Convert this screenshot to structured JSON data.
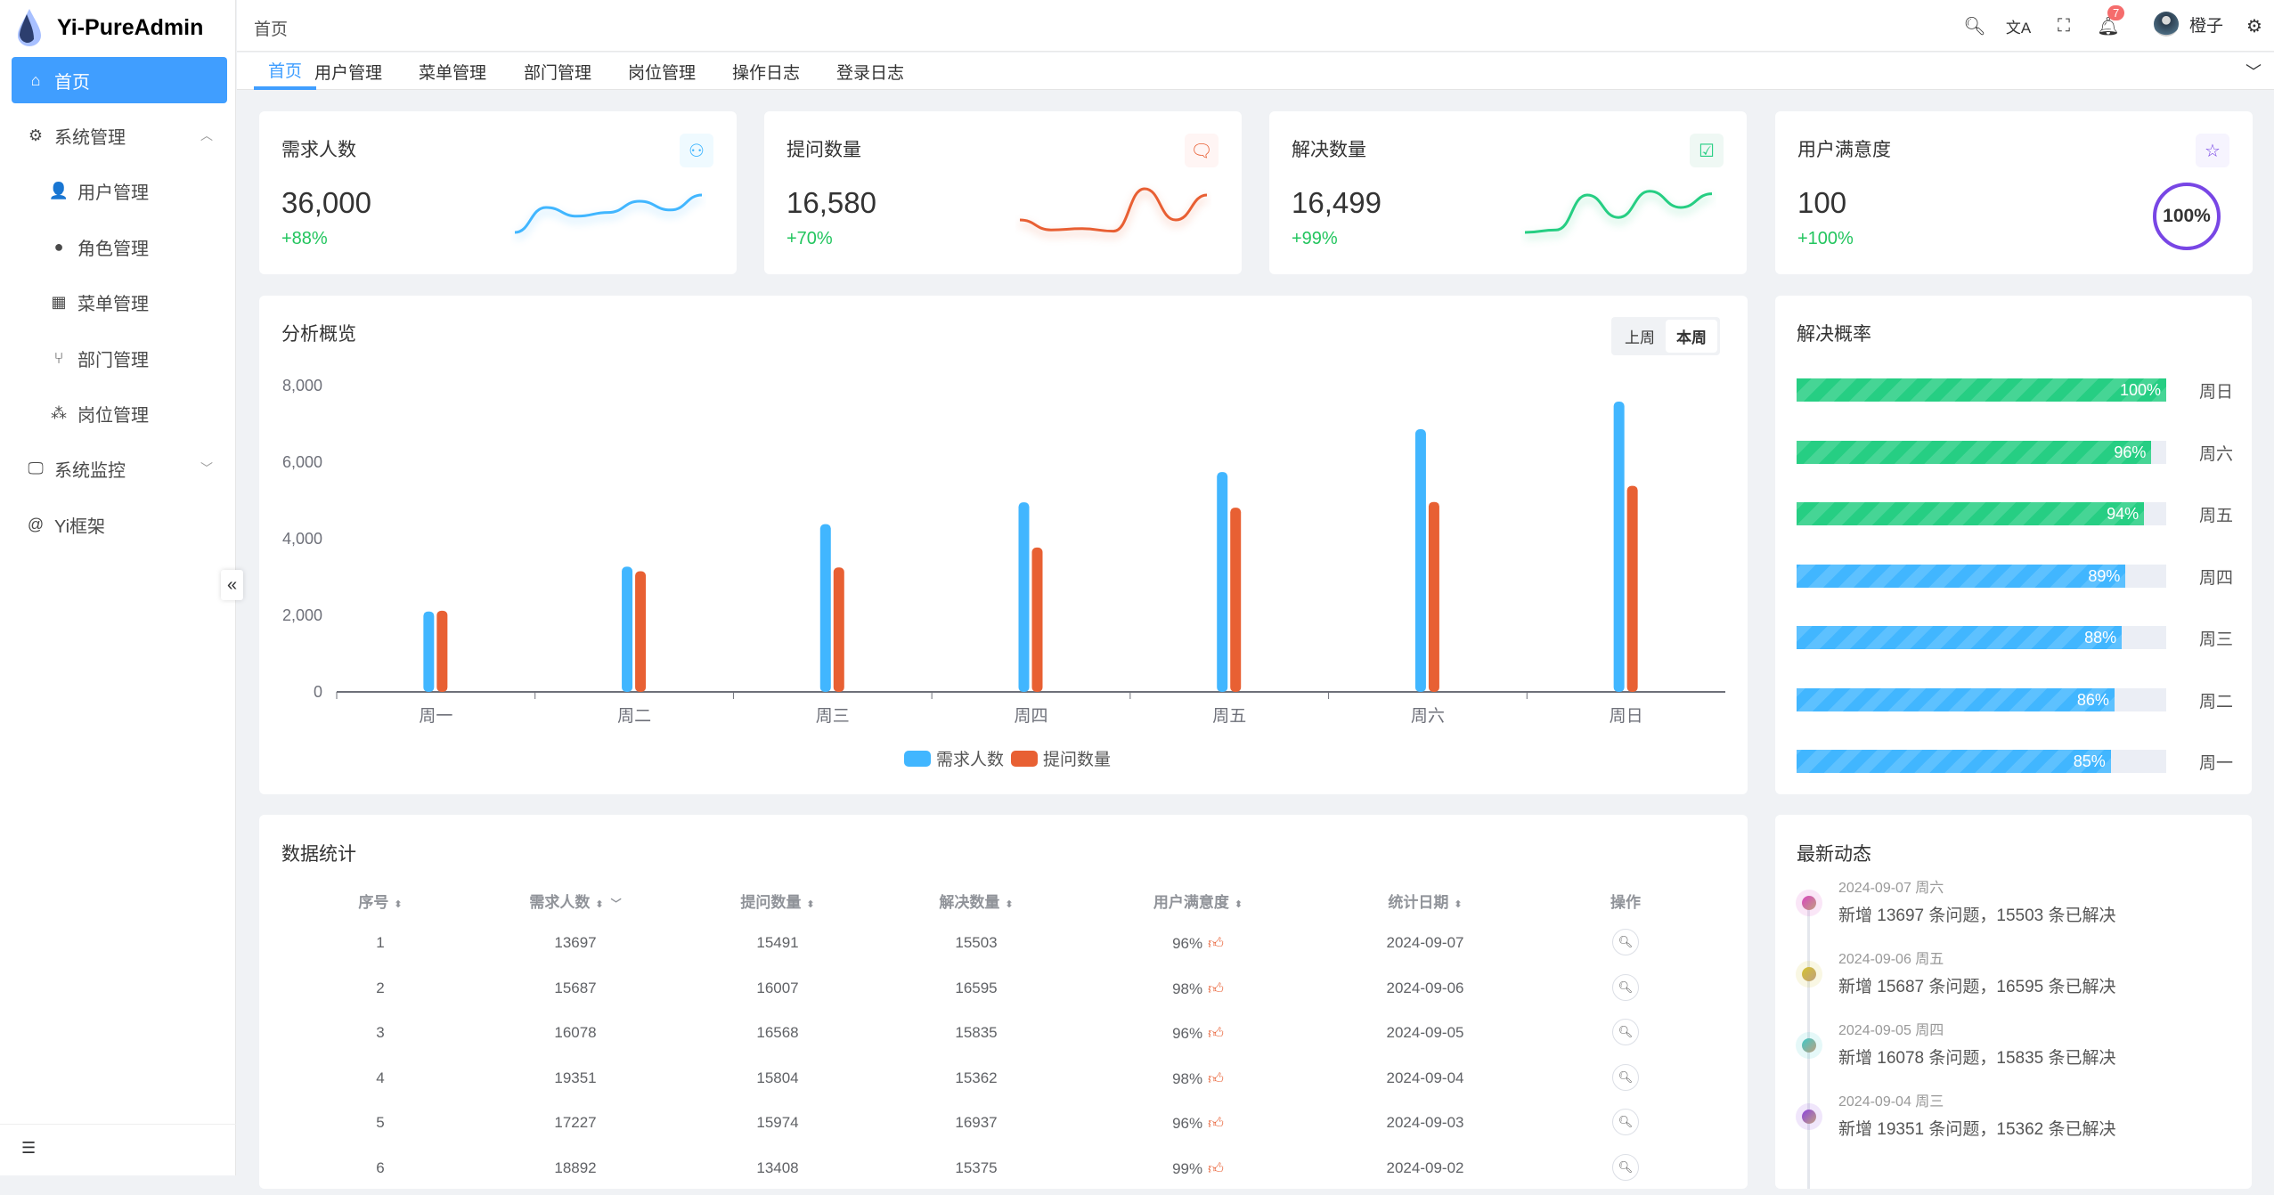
{
  "app": {
    "title": "Yi-PureAdmin"
  },
  "sidebar": {
    "items": [
      {
        "label": "首页",
        "icon": "home-icon"
      },
      {
        "label": "系统管理",
        "icon": "gear-icon"
      },
      {
        "label": "用户管理",
        "icon": "user-lock-icon"
      },
      {
        "label": "角色管理",
        "icon": "role-icon"
      },
      {
        "label": "菜单管理",
        "icon": "grid-icon"
      },
      {
        "label": "部门管理",
        "icon": "branch-icon"
      },
      {
        "label": "岗位管理",
        "icon": "nodes-icon"
      },
      {
        "label": "系统监控",
        "icon": "monitor-icon"
      },
      {
        "label": "Yi框架",
        "icon": "at-icon"
      }
    ]
  },
  "header": {
    "breadcrumb": "首页",
    "notification_count": "7",
    "user_name": "橙子"
  },
  "tabs": [
    "首页",
    "用户管理",
    "菜单管理",
    "部门管理",
    "岗位管理",
    "操作日志",
    "登录日志"
  ],
  "stats": [
    {
      "title": "需求人数",
      "value": "36,000",
      "change": "+88%",
      "color": "#41b6ff",
      "bg": "#effaff",
      "trend": [
        1,
        3,
        2.3,
        2.6,
        3.5,
        2.8,
        4
      ]
    },
    {
      "title": "提问数量",
      "value": "16,580",
      "change": "+70%",
      "color": "#e85f33",
      "bg": "#fff5f4",
      "trend": [
        2,
        1.2,
        1.3,
        1.1,
        4.5,
        2,
        4
      ]
    },
    {
      "title": "解决数量",
      "value": "16,499",
      "change": "+99%",
      "color": "#26ce83",
      "bg": "#eff8f4",
      "trend": [
        1,
        1.2,
        4,
        2.2,
        4.3,
        3,
        4.1
      ]
    },
    {
      "title": "用户满意度",
      "value": "100",
      "change": "+100%",
      "color": "#7846e5",
      "bg": "#f6f4fe",
      "ring_label": "100%",
      "ring_value": 100
    }
  ],
  "overview": {
    "title": "分析概览",
    "toggle": [
      "上周",
      "本周"
    ],
    "active_toggle": 1
  },
  "chart_data": {
    "type": "bar",
    "categories": [
      "周一",
      "周二",
      "周三",
      "周四",
      "周五",
      "周六",
      "周日"
    ],
    "series": [
      {
        "name": "需求人数",
        "color": "#41b6ff",
        "values": [
          2100,
          3270,
          4380,
          4950,
          5740,
          6860,
          7580
        ]
      },
      {
        "name": "提问数量",
        "color": "#e86033",
        "values": [
          2120,
          3150,
          3250,
          3770,
          4810,
          4960,
          5380
        ]
      }
    ],
    "ylim": [
      0,
      8000
    ],
    "yticks": [
      "0",
      "2,000",
      "4,000",
      "6,000",
      "8,000"
    ],
    "legend": "bottom",
    "grid": false
  },
  "solve_rate": {
    "title": "解决概率",
    "items": [
      {
        "day": "周日",
        "value": 100,
        "color": "#26ce83"
      },
      {
        "day": "周六",
        "value": 96,
        "color": "#26ce83"
      },
      {
        "day": "周五",
        "value": 94,
        "color": "#26ce83"
      },
      {
        "day": "周四",
        "value": 89,
        "color": "#41b6ff"
      },
      {
        "day": "周三",
        "value": 88,
        "color": "#41b6ff"
      },
      {
        "day": "周二",
        "value": 86,
        "color": "#41b6ff"
      },
      {
        "day": "周一",
        "value": 85,
        "color": "#41b6ff"
      }
    ]
  },
  "table": {
    "title": "数据统计",
    "columns": [
      "序号",
      "需求人数",
      "提问数量",
      "解决数量",
      "用户满意度",
      "统计日期",
      "操作"
    ],
    "rows": [
      [
        "1",
        "13697",
        "15491",
        "15503",
        "96%",
        "2024-09-07"
      ],
      [
        "2",
        "15687",
        "16007",
        "16595",
        "98%",
        "2024-09-06"
      ],
      [
        "3",
        "16078",
        "16568",
        "15835",
        "96%",
        "2024-09-05"
      ],
      [
        "4",
        "19351",
        "15804",
        "15362",
        "98%",
        "2024-09-04"
      ],
      [
        "5",
        "17227",
        "15974",
        "16937",
        "96%",
        "2024-09-03"
      ],
      [
        "6",
        "18892",
        "13408",
        "15375",
        "99%",
        "2024-09-02"
      ]
    ]
  },
  "activity": {
    "title": "最新动态",
    "items": [
      {
        "date": "2024-09-07 周六",
        "text": "新增 13697 条问题，15503 条已解决",
        "color": "#d946c0"
      },
      {
        "date": "2024-09-06 周五",
        "text": "新增 15687 条问题，16595 条已解决",
        "color": "#d4c22e"
      },
      {
        "date": "2024-09-05 周四",
        "text": "新增 16078 条问题，15835 条已解决",
        "color": "#3cc9c9"
      },
      {
        "date": "2024-09-04 周三",
        "text": "新增 19351 条问题，15362 条已解决",
        "color": "#8b44e0"
      }
    ]
  }
}
